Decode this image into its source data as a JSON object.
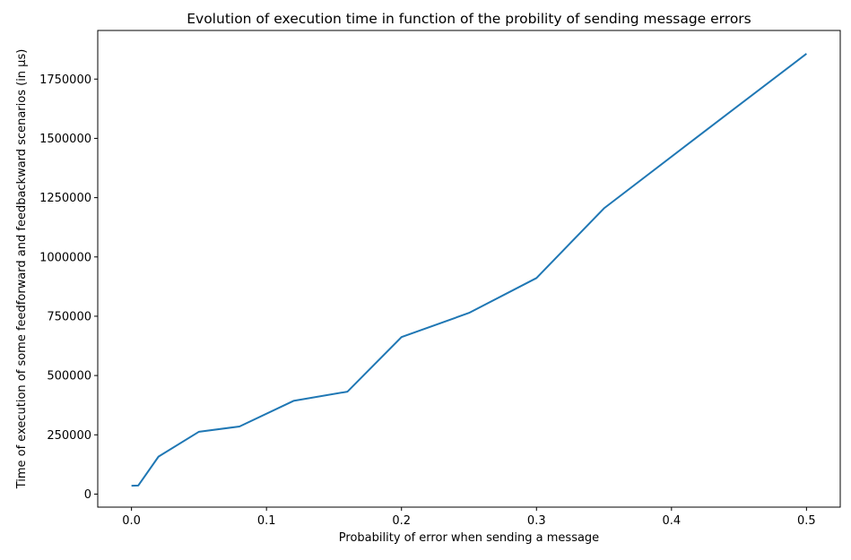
{
  "chart_data": {
    "type": "line",
    "title": "Evolution of execution time in function of the probility of sending message errors",
    "xlabel": "Probability of error when sending a message",
    "ylabel": "Time of execution of some feedforward and feedbackward scenarios (in µs)",
    "xlim": [
      -0.025,
      0.525
    ],
    "ylim": [
      -55000,
      1955000
    ],
    "xticks": [
      0.0,
      0.1,
      0.2,
      0.3,
      0.4,
      0.5
    ],
    "xtick_labels": [
      "0.0",
      "0.1",
      "0.2",
      "0.3",
      "0.4",
      "0.5"
    ],
    "yticks": [
      0,
      250000,
      500000,
      750000,
      1000000,
      1250000,
      1500000,
      1750000
    ],
    "ytick_labels": [
      "0",
      "250000",
      "500000",
      "750000",
      "1000000",
      "1250000",
      "1500000",
      "1750000"
    ],
    "grid": false,
    "series": [
      {
        "color": "#1f77b4",
        "x": [
          0.0,
          0.005,
          0.02,
          0.05,
          0.08,
          0.12,
          0.16,
          0.2,
          0.25,
          0.3,
          0.35,
          0.42,
          0.5
        ],
        "y": [
          35000,
          36000,
          158000,
          263000,
          285000,
          393000,
          432000,
          662000,
          764000,
          911000,
          1205000,
          1510000,
          1857000
        ]
      }
    ]
  }
}
